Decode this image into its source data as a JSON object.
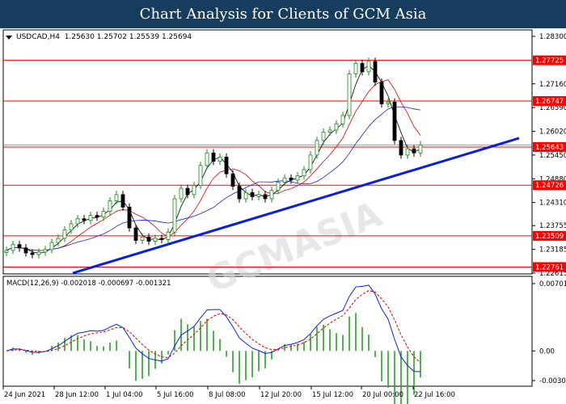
{
  "header": {
    "title": "Chart Analysis for Clients of GCM Asia"
  },
  "chart_data": [
    {
      "type": "candlestick",
      "symbol_label": "USDCAD,H4",
      "ohlc_label": "1.25630 1.25702 1.25539 1.25694",
      "ylim": [
        1.22615,
        1.283
      ],
      "y_ticks": [
        "1.28300",
        "1.27160",
        "1.26590",
        "1.26020",
        "1.25450",
        "1.24880",
        "1.24310",
        "1.23755",
        "1.23185",
        "1.22615"
      ],
      "closes": [
        1.2316,
        1.233,
        1.2322,
        1.231,
        1.2306,
        1.2312,
        1.2318,
        1.2335,
        1.2345,
        1.2365,
        1.238,
        1.2392,
        1.2388,
        1.24,
        1.2396,
        1.241,
        1.2435,
        1.245,
        1.242,
        1.237,
        1.234,
        1.2348,
        1.2338,
        1.2345,
        1.2342,
        1.236,
        1.244,
        1.2465,
        1.245,
        1.2472,
        1.252,
        1.255,
        1.253,
        1.254,
        1.25,
        1.247,
        1.244,
        1.2455,
        1.2445,
        1.245,
        1.244,
        1.246,
        1.248,
        1.249,
        1.2485,
        1.2495,
        1.251,
        1.2545,
        1.258,
        1.26,
        1.2605,
        1.262,
        1.264,
        1.274,
        1.2765,
        1.2745,
        1.277,
        1.272,
        1.2668,
        1.2672,
        1.258,
        1.2545,
        1.256,
        1.255,
        1.25694
      ],
      "levels": [
        "1.27725",
        "1.26747",
        "1.25643",
        "1.24726",
        "1.23509",
        "1.22761"
      ],
      "trendline": {
        "start": 1.22615,
        "end": 1.25856,
        "color": "#0a1ee0"
      },
      "ma_colors": [
        "#000000",
        "#e00000",
        "#1020e0"
      ],
      "level_color": "#ff0000",
      "up_color": "#1a8a1a",
      "down_color": "#000000"
    },
    {
      "type": "macd",
      "label": "MACD(12,26,9) -0.002018 -0.000697 -0.001321",
      "ylim": [
        -0.00309,
        0.00701
      ],
      "y_ticks": [
        "0.00701",
        "0.00",
        "-0.00309"
      ],
      "main_color": "#1020e0",
      "signal_color": "#e00000",
      "hist_color": "#1a9a1a"
    }
  ],
  "x_ticks": [
    "24 Jun 2021",
    "28 Jun 12:00",
    "1 Jul 04:00",
    "5 Jul 16:00",
    "8 Jul 08:00",
    "12 Jul 20:00",
    "15 Jul 12:00",
    "20 Jul 00:00",
    "22 Jul 16:00"
  ]
}
